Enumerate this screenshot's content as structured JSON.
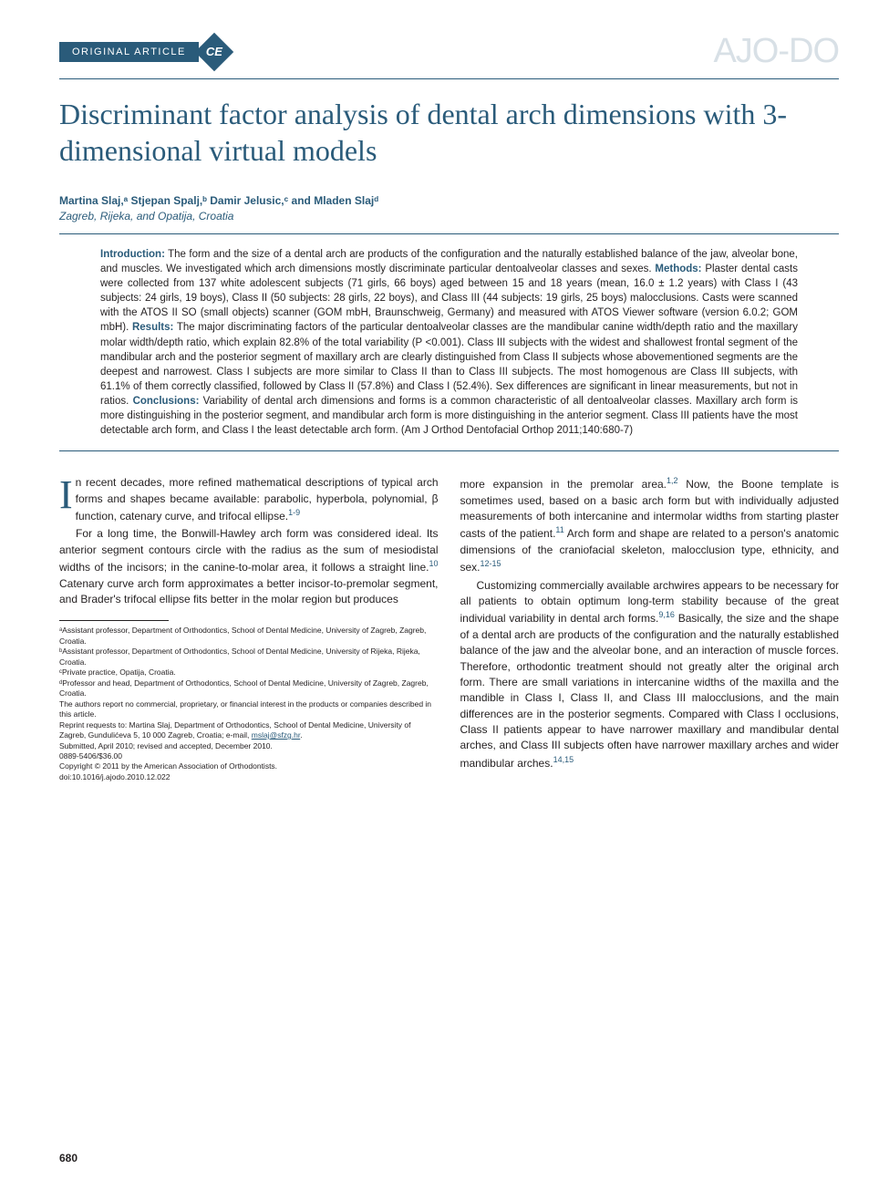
{
  "header": {
    "article_type": "ORIGINAL ARTICLE",
    "ce_badge": "CE",
    "journal_logo": "AJO-DO"
  },
  "title": "Discriminant factor analysis of dental arch dimensions with 3-dimensional virtual models",
  "authors_line": "Martina Slaj,ᵃ Stjepan Spalj,ᵇ Damir Jelusic,ᶜ and Mladen Slajᵈ",
  "affiliations_location": "Zagreb, Rijeka, and Opatija, Croatia",
  "abstract": {
    "intro_label": "Introduction:",
    "intro_text": " The form and the size of a dental arch are products of the configuration and the naturally established balance of the jaw, alveolar bone, and muscles. We investigated which arch dimensions mostly discriminate particular dentoalveolar classes and sexes. ",
    "methods_label": "Methods:",
    "methods_text": " Plaster dental casts were collected from 137 white adolescent subjects (71 girls, 66 boys) aged between 15 and 18 years (mean, 16.0 ± 1.2 years) with Class I (43 subjects: 24 girls, 19 boys), Class II (50 subjects: 28 girls, 22 boys), and Class III (44 subjects: 19 girls, 25 boys) malocclusions. Casts were scanned with the ATOS II SO (small objects) scanner (GOM mbH, Braunschweig, Germany) and measured with ATOS Viewer software (version 6.0.2; GOM mbH). ",
    "results_label": "Results:",
    "results_text": " The major discriminating factors of the particular dentoalveolar classes are the mandibular canine width/depth ratio and the maxillary molar width/depth ratio, which explain 82.8% of the total variability (P <0.001). Class III subjects with the widest and shallowest frontal segment of the mandibular arch and the posterior segment of maxillary arch are clearly distinguished from Class II subjects whose abovementioned segments are the deepest and narrowest. Class I subjects are more similar to Class II than to Class III subjects. The most homogenous are Class III subjects, with 61.1% of them correctly classified, followed by Class II (57.8%) and Class I (52.4%). Sex differences are significant in linear measurements, but not in ratios. ",
    "concl_label": "Conclusions:",
    "concl_text": " Variability of dental arch dimensions and forms is a common characteristic of all dentoalveolar classes. Maxillary arch form is more distinguishing in the posterior segment, and mandibular arch form is more distinguishing in the anterior segment. Class III patients have the most detectable arch form, and Class I the least detectable arch form. (Am J Orthod Dentofacial Orthop 2011;140:680-7)"
  },
  "body": {
    "col1_p1_first": "n recent decades, more refined mathematical descriptions of typical arch forms and shapes became available: parabolic, hyperbola, polynomial, β function, catenary curve, and trifocal ellipse.",
    "col1_p1_ref": "1-9",
    "col1_p2": "For a long time, the Bonwill-Hawley arch form was considered ideal. Its anterior segment contours circle with the radius as the sum of mesiodistal widths of the incisors; in the canine-to-molar area, it follows a straight line.",
    "col1_p2_ref": "10",
    "col1_p2_cont": " Catenary curve arch form approximates a better incisor-to-premolar segment, and Brader's trifocal ellipse fits better in the molar region but produces",
    "col2_p1": "more expansion in the premolar area.",
    "col2_p1_ref": "1,2",
    "col2_p1_cont": " Now, the Boone template is sometimes used, based on a basic arch form but with individually adjusted measurements of both intercanine and intermolar widths from starting plaster casts of the patient.",
    "col2_p1_ref2": "11",
    "col2_p1_cont2": " Arch form and shape are related to a person's anatomic dimensions of the craniofacial skeleton, malocclusion type, ethnicity, and sex.",
    "col2_p1_ref3": "12-15",
    "col2_p2": "Customizing commercially available archwires appears to be necessary for all patients to obtain optimum long-term stability because of the great individual variability in dental arch forms.",
    "col2_p2_ref": "9,16",
    "col2_p2_cont": " Basically, the size and the shape of a dental arch are products of the configuration and the naturally established balance of the jaw and the alveolar bone, and an interaction of muscle forces. Therefore, orthodontic treatment should not greatly alter the original arch form. There are small variations in intercanine widths of the maxilla and the mandible in Class I, Class II, and Class III malocclusions, and the main differences are in the posterior segments. Compared with Class I occlusions, Class II patients appear to have narrower maxillary and mandibular dental arches, and Class III subjects often have narrower maxillary arches and wider mandibular arches.",
    "col2_p2_ref2": "14,15"
  },
  "footnotes": {
    "a": "ᵃAssistant professor, Department of Orthodontics, School of Dental Medicine, University of Zagreb, Zagreb, Croatia.",
    "b": "ᵇAssistant professor, Department of Orthodontics, School of Dental Medicine, University of Rijeka, Rijeka, Croatia.",
    "c": "ᶜPrivate practice, Opatija, Croatia.",
    "d": "ᵈProfessor and head, Department of Orthodontics, School of Dental Medicine, University of Zagreb, Zagreb, Croatia.",
    "disclosure": "The authors report no commercial, proprietary, or financial interest in the products or companies described in this article.",
    "reprint": "Reprint requests to: Martina Slaj, Department of Orthodontics, School of Dental Medicine, University of Zagreb, Gundulićeva 5, 10 000 Zagreb, Croatia; e-mail, ",
    "email": "mslaj@sfzg.hr",
    "reprint_end": ".",
    "submitted": "Submitted, April 2010; revised and accepted, December 2010.",
    "issn": "0889-5406/$36.00",
    "copyright": "Copyright © 2011 by the American Association of Orthodontists.",
    "doi": "doi:10.1016/j.ajodo.2010.12.022"
  },
  "page_number": "680",
  "colors": {
    "brand_blue": "#2a5b7a",
    "logo_gray": "#d8e0e6",
    "text": "#231f20",
    "background": "#ffffff"
  },
  "typography": {
    "title_fontsize": 32,
    "body_fontsize": 12,
    "abstract_fontsize": 11.5,
    "footnote_fontsize": 8.5
  }
}
